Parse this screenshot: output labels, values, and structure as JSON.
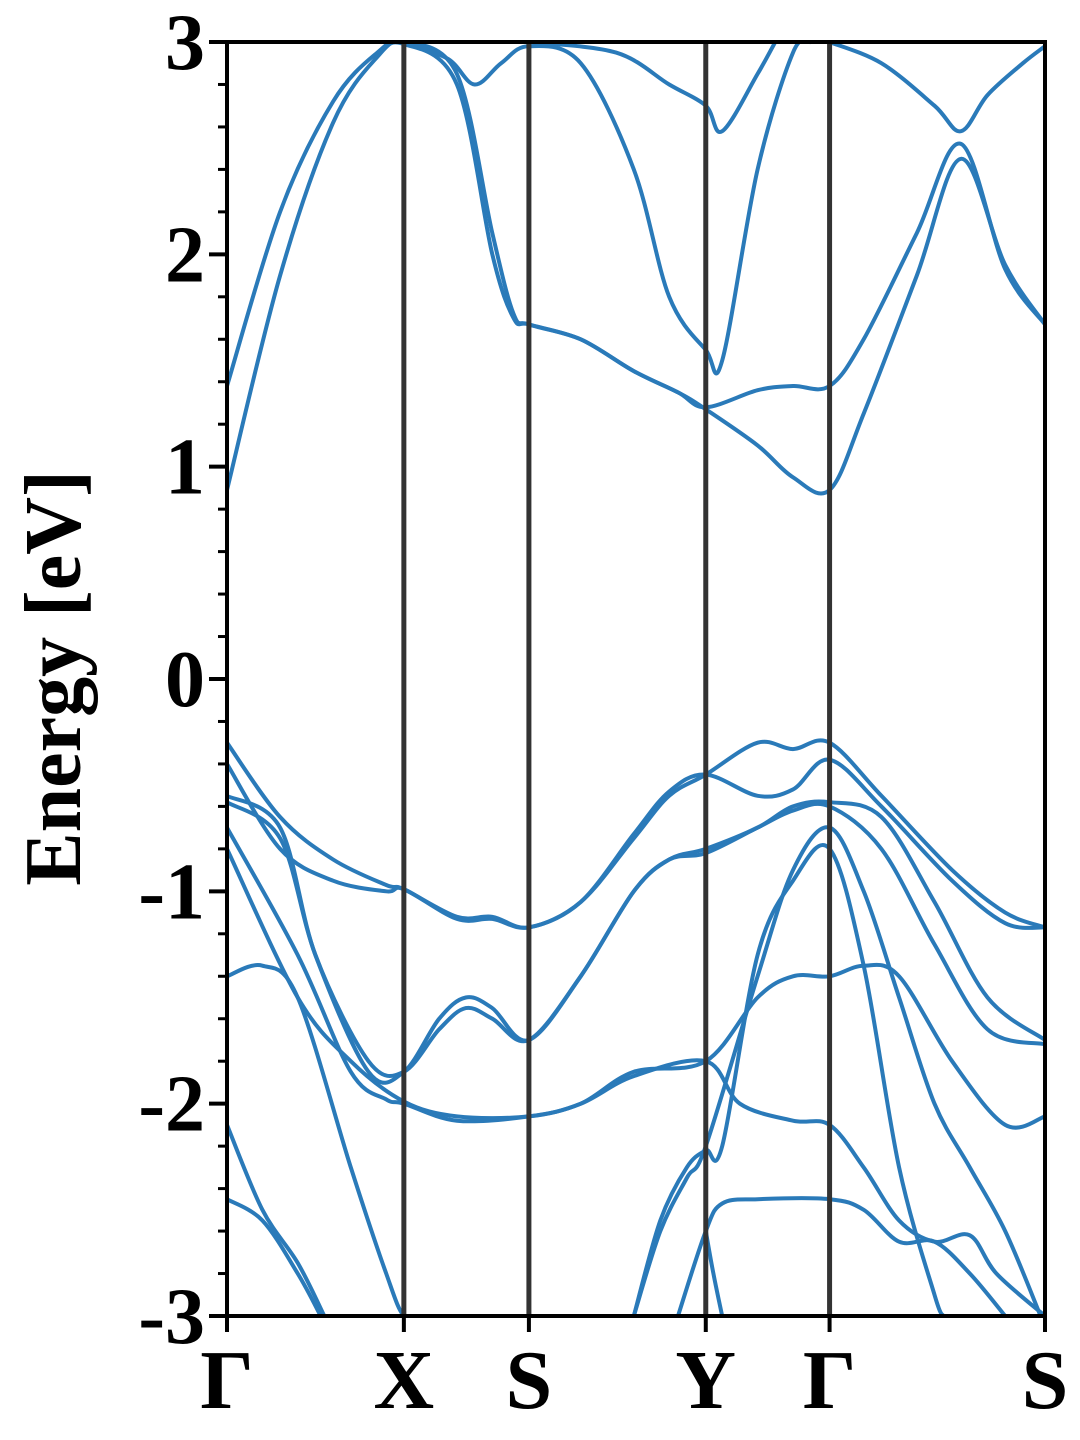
{
  "chart_data": {
    "type": "line",
    "title": "",
    "xlabel": "",
    "ylabel": "Energy [eV]",
    "ylim": [
      -3,
      3
    ],
    "yticks": [
      "3",
      "2",
      "1",
      "0",
      "-1",
      "-2",
      "-3"
    ],
    "ytick_values": [
      3,
      2,
      1,
      0,
      -1,
      -2,
      -3
    ],
    "xlim": [
      0,
      4.625
    ],
    "high_symmetry_points": [
      {
        "label": "Γ",
        "x": 0
      },
      {
        "label": "X",
        "x": 1
      },
      {
        "label": "S",
        "x": 1.707
      },
      {
        "label": "Y",
        "x": 2.707
      },
      {
        "label": "Γ",
        "x": 3.407
      },
      {
        "label": "S",
        "x": 4.625
      }
    ],
    "band_color": "#2a7ab9",
    "grid": false,
    "legend": "none",
    "series": [
      {
        "values": [
          [
            0,
            1.38
          ],
          [
            0.3,
            2.2
          ],
          [
            0.6,
            2.72
          ],
          [
            0.85,
            2.95
          ],
          [
            1,
            3.0
          ],
          [
            1.3,
            2.85
          ],
          [
            1.5,
            2.1
          ],
          [
            1.62,
            1.72
          ],
          [
            1.707,
            1.67
          ],
          [
            2.0,
            1.6
          ],
          [
            2.3,
            1.45
          ],
          [
            2.55,
            1.35
          ],
          [
            2.707,
            1.27
          ],
          [
            3.0,
            1.1
          ],
          [
            3.2,
            0.95
          ],
          [
            3.407,
            0.89
          ],
          [
            3.6,
            1.25
          ],
          [
            3.9,
            1.9
          ],
          [
            4.15,
            2.45
          ],
          [
            4.4,
            1.95
          ],
          [
            4.625,
            1.67
          ]
        ]
      },
      {
        "values": [
          [
            0,
            0.89
          ],
          [
            0.3,
            1.9
          ],
          [
            0.6,
            2.62
          ],
          [
            0.85,
            2.93
          ],
          [
            1,
            2.99
          ],
          [
            1.3,
            2.8
          ],
          [
            1.5,
            2.0
          ],
          [
            1.62,
            1.7
          ],
          [
            1.707,
            1.67
          ],
          [
            2.0,
            1.6
          ],
          [
            2.3,
            1.45
          ],
          [
            2.55,
            1.35
          ],
          [
            2.707,
            1.28
          ],
          [
            3.0,
            1.36
          ],
          [
            3.2,
            1.38
          ],
          [
            3.407,
            1.38
          ],
          [
            3.6,
            1.6
          ],
          [
            3.9,
            2.1
          ],
          [
            4.15,
            2.52
          ],
          [
            4.4,
            1.93
          ],
          [
            4.625,
            1.67
          ]
        ]
      },
      {
        "values": [
          [
            1,
            3.0
          ],
          [
            1.25,
            2.92
          ],
          [
            1.4,
            2.8
          ],
          [
            1.55,
            2.9
          ],
          [
            1.707,
            2.98
          ],
          [
            2.0,
            2.9
          ],
          [
            2.3,
            2.4
          ],
          [
            2.5,
            1.8
          ],
          [
            2.707,
            1.55
          ],
          [
            2.8,
            1.5
          ],
          [
            3.0,
            2.4
          ],
          [
            3.2,
            2.95
          ],
          [
            3.3,
            3.0
          ]
        ]
      },
      {
        "values": [
          [
            1.707,
            3.0
          ],
          [
            2.2,
            2.95
          ],
          [
            2.5,
            2.8
          ],
          [
            2.707,
            2.7
          ],
          [
            2.8,
            2.58
          ],
          [
            3.0,
            2.85
          ],
          [
            3.1,
            3.0
          ]
        ]
      },
      {
        "values": [
          [
            3.407,
            3.0
          ],
          [
            3.7,
            2.9
          ],
          [
            4.0,
            2.7
          ],
          [
            4.15,
            2.58
          ],
          [
            4.3,
            2.75
          ],
          [
            4.5,
            2.9
          ],
          [
            4.625,
            2.98
          ]
        ]
      },
      {
        "values": [
          [
            0,
            -0.3
          ],
          [
            0.3,
            -0.65
          ],
          [
            0.6,
            -0.85
          ],
          [
            0.9,
            -0.97
          ],
          [
            1,
            -0.99
          ],
          [
            1.3,
            -1.12
          ],
          [
            1.5,
            -1.12
          ],
          [
            1.707,
            -1.17
          ],
          [
            2.0,
            -1.05
          ],
          [
            2.3,
            -0.75
          ],
          [
            2.5,
            -0.55
          ],
          [
            2.707,
            -0.45
          ],
          [
            3.0,
            -0.3
          ],
          [
            3.2,
            -0.33
          ],
          [
            3.407,
            -0.3
          ],
          [
            3.7,
            -0.55
          ],
          [
            4.1,
            -0.9
          ],
          [
            4.4,
            -1.1
          ],
          [
            4.625,
            -1.17
          ]
        ]
      },
      {
        "values": [
          [
            0,
            -0.4
          ],
          [
            0.3,
            -0.8
          ],
          [
            0.6,
            -0.95
          ],
          [
            0.9,
            -1.0
          ],
          [
            1,
            -0.99
          ],
          [
            1.3,
            -1.13
          ],
          [
            1.5,
            -1.13
          ],
          [
            1.707,
            -1.17
          ],
          [
            2.0,
            -1.05
          ],
          [
            2.3,
            -0.73
          ],
          [
            2.5,
            -0.53
          ],
          [
            2.707,
            -0.45
          ],
          [
            3.0,
            -0.55
          ],
          [
            3.2,
            -0.52
          ],
          [
            3.407,
            -0.38
          ],
          [
            3.7,
            -0.6
          ],
          [
            4.1,
            -0.95
          ],
          [
            4.4,
            -1.15
          ],
          [
            4.625,
            -1.17
          ]
        ]
      },
      {
        "values": [
          [
            0,
            -0.55
          ],
          [
            0.3,
            -0.7
          ],
          [
            0.5,
            -1.3
          ],
          [
            0.8,
            -1.8
          ],
          [
            1,
            -1.85
          ],
          [
            1.2,
            -1.65
          ],
          [
            1.35,
            -1.55
          ],
          [
            1.5,
            -1.6
          ],
          [
            1.707,
            -1.7
          ],
          [
            2.0,
            -1.4
          ],
          [
            2.3,
            -1.0
          ],
          [
            2.5,
            -0.85
          ],
          [
            2.707,
            -0.8
          ],
          [
            3.0,
            -0.7
          ],
          [
            3.2,
            -0.6
          ],
          [
            3.407,
            -0.58
          ],
          [
            3.7,
            -0.65
          ],
          [
            4.0,
            -1.05
          ],
          [
            4.3,
            -1.5
          ],
          [
            4.625,
            -1.7
          ]
        ]
      },
      {
        "values": [
          [
            0,
            -0.58
          ],
          [
            0.3,
            -0.75
          ],
          [
            0.5,
            -1.3
          ],
          [
            0.8,
            -1.85
          ],
          [
            1,
            -1.85
          ],
          [
            1.2,
            -1.6
          ],
          [
            1.35,
            -1.5
          ],
          [
            1.5,
            -1.55
          ],
          [
            1.707,
            -1.7
          ],
          [
            2.0,
            -1.4
          ],
          [
            2.3,
            -1.0
          ],
          [
            2.5,
            -0.85
          ],
          [
            2.707,
            -0.82
          ],
          [
            3.0,
            -0.7
          ],
          [
            3.2,
            -0.62
          ],
          [
            3.407,
            -0.6
          ],
          [
            3.7,
            -0.8
          ],
          [
            4.0,
            -1.25
          ],
          [
            4.3,
            -1.65
          ],
          [
            4.625,
            -1.72
          ]
        ]
      },
      {
        "values": [
          [
            0,
            -0.7
          ],
          [
            0.4,
            -1.3
          ],
          [
            0.7,
            -1.85
          ],
          [
            0.9,
            -1.98
          ],
          [
            1,
            -2.0
          ],
          [
            1.3,
            -2.08
          ],
          [
            1.707,
            -2.06
          ],
          [
            2.0,
            -2.0
          ],
          [
            2.3,
            -1.85
          ],
          [
            2.707,
            -1.8
          ],
          [
            3.0,
            -1.5
          ],
          [
            3.2,
            -1.4
          ],
          [
            3.407,
            -1.4
          ],
          [
            3.6,
            -1.35
          ],
          [
            3.8,
            -1.4
          ],
          [
            4.1,
            -1.8
          ],
          [
            4.4,
            -2.1
          ],
          [
            4.625,
            -2.06
          ]
        ]
      },
      {
        "values": [
          [
            0,
            -0.8
          ],
          [
            0.4,
            -1.5
          ],
          [
            0.7,
            -1.8
          ],
          [
            1,
            -1.99
          ],
          [
            1.3,
            -2.06
          ],
          [
            1.707,
            -2.06
          ],
          [
            2.0,
            -2.0
          ],
          [
            2.3,
            -1.87
          ],
          [
            2.707,
            -1.8
          ],
          [
            2.9,
            -2.0
          ],
          [
            3.2,
            -2.08
          ],
          [
            3.407,
            -2.1
          ],
          [
            3.6,
            -2.3
          ],
          [
            3.8,
            -2.55
          ],
          [
            4.0,
            -2.65
          ],
          [
            4.2,
            -2.62
          ],
          [
            4.35,
            -2.8
          ],
          [
            4.625,
            -3.0
          ]
        ]
      },
      {
        "values": [
          [
            0,
            -1.4
          ],
          [
            0.2,
            -1.35
          ],
          [
            0.4,
            -1.5
          ],
          [
            0.7,
            -2.3
          ],
          [
            0.9,
            -2.8
          ],
          [
            1,
            -3.0
          ],
          [
            1.1,
            -3.0
          ]
        ]
      },
      {
        "values": [
          [
            0,
            -2.1
          ],
          [
            0.2,
            -2.5
          ],
          [
            0.4,
            -2.75
          ],
          [
            0.55,
            -3.0
          ]
        ]
      },
      {
        "values": [
          [
            0,
            -2.45
          ],
          [
            0.2,
            -2.55
          ],
          [
            0.4,
            -2.8
          ],
          [
            0.53,
            -3.0
          ]
        ]
      },
      {
        "values": [
          [
            2.3,
            -3.0
          ],
          [
            2.45,
            -2.6
          ],
          [
            2.6,
            -2.35
          ],
          [
            2.707,
            -2.2
          ],
          [
            3.0,
            -1.4
          ],
          [
            3.2,
            -0.9
          ],
          [
            3.407,
            -0.7
          ],
          [
            3.6,
            -1.0
          ],
          [
            3.8,
            -1.5
          ],
          [
            4.0,
            -2.0
          ],
          [
            4.2,
            -2.3
          ],
          [
            4.4,
            -2.6
          ],
          [
            4.6,
            -3.0
          ]
        ]
      },
      {
        "values": [
          [
            2.3,
            -3.0
          ],
          [
            2.45,
            -2.55
          ],
          [
            2.6,
            -2.3
          ],
          [
            2.707,
            -2.22
          ],
          [
            2.8,
            -2.2
          ],
          [
            3.0,
            -1.3
          ],
          [
            3.2,
            -0.95
          ],
          [
            3.407,
            -0.8
          ],
          [
            3.6,
            -1.35
          ],
          [
            3.8,
            -2.3
          ],
          [
            4.0,
            -2.9
          ],
          [
            4.05,
            -3.0
          ]
        ]
      },
      {
        "values": [
          [
            2.55,
            -3.0
          ],
          [
            2.707,
            -2.6
          ],
          [
            2.8,
            -2.47
          ],
          [
            3.0,
            -2.45
          ],
          [
            3.407,
            -2.45
          ],
          [
            3.6,
            -2.5
          ],
          [
            3.8,
            -2.65
          ],
          [
            4.0,
            -2.65
          ],
          [
            4.2,
            -2.8
          ],
          [
            4.4,
            -3.0
          ]
        ]
      },
      {
        "values": [
          [
            2.707,
            -2.6
          ],
          [
            2.75,
            -2.8
          ],
          [
            2.8,
            -3.0
          ]
        ]
      }
    ]
  }
}
